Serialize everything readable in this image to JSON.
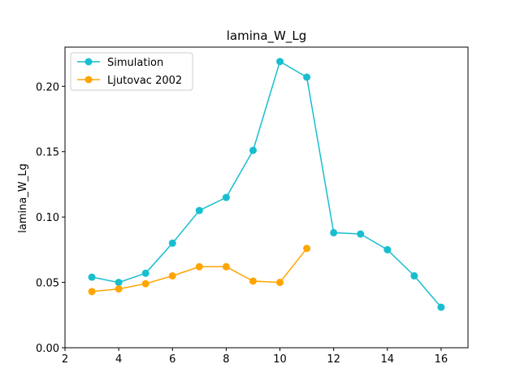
{
  "chart_data": {
    "type": "line",
    "title": "lamina_W_Lg",
    "xlabel": "",
    "ylabel": "lamina_W_Lg",
    "xlim": [
      2,
      17
    ],
    "ylim": [
      0,
      0.23
    ],
    "xticks": [
      "2",
      "4",
      "6",
      "8",
      "10",
      "12",
      "14",
      "16"
    ],
    "yticks": [
      "0.00",
      "0.05",
      "0.10",
      "0.15",
      "0.20"
    ],
    "legend_position": "top-left",
    "grid": false,
    "series": [
      {
        "name": "Simulation",
        "color": "#17becf",
        "x": [
          3,
          4,
          5,
          6,
          7,
          8,
          9,
          10,
          11,
          12,
          13,
          14,
          15,
          16
        ],
        "y": [
          0.054,
          0.05,
          0.057,
          0.08,
          0.105,
          0.115,
          0.151,
          0.219,
          0.207,
          0.088,
          0.087,
          0.075,
          0.055,
          0.031
        ]
      },
      {
        "name": "Ljutovac 2002",
        "color": "#ffa500",
        "x": [
          3,
          4,
          5,
          6,
          7,
          8,
          9,
          10,
          11
        ],
        "y": [
          0.043,
          0.045,
          0.049,
          0.055,
          0.062,
          0.062,
          0.051,
          0.05,
          0.076
        ]
      }
    ]
  }
}
